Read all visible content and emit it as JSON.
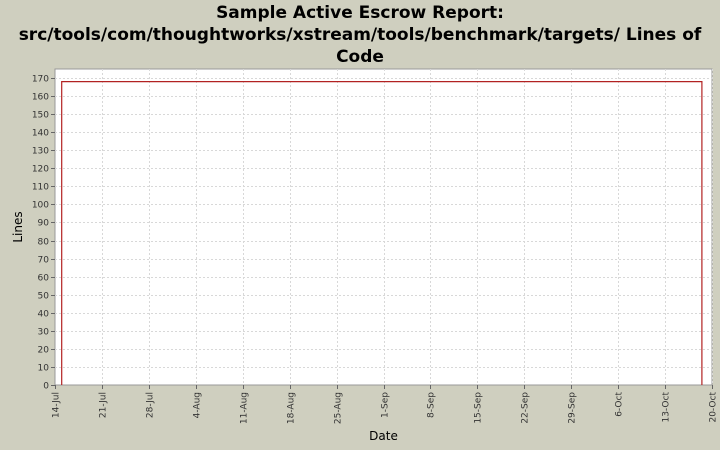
{
  "chart_data": {
    "type": "line",
    "title_lines": [
      "Sample Active Escrow Report:",
      "src/tools/com/thoughtworks/xstream/tools/benchmark/targets/ Lines of",
      "Code"
    ],
    "xlabel": "Date",
    "ylabel": "Lines",
    "x_tick_labels": [
      "14-Jul",
      "21-Jul",
      "28-Jul",
      "4-Aug",
      "11-Aug",
      "18-Aug",
      "25-Aug",
      "1-Sep",
      "8-Sep",
      "15-Sep",
      "22-Sep",
      "29-Sep",
      "6-Oct",
      "13-Oct",
      "20-Oct"
    ],
    "y_tick_labels": [
      "0",
      "10",
      "20",
      "30",
      "40",
      "50",
      "60",
      "70",
      "80",
      "90",
      "100",
      "110",
      "120",
      "130",
      "140",
      "150",
      "160",
      "170"
    ],
    "ylim": [
      0,
      175
    ],
    "x_range_days": [
      0,
      98
    ],
    "grid": true,
    "series": [
      {
        "color": "#b22222",
        "points": [
          {
            "day": 1,
            "value": 0
          },
          {
            "day": 1,
            "value": 168
          },
          {
            "day": 96.5,
            "value": 168
          },
          {
            "day": 96.5,
            "value": 0
          }
        ]
      }
    ],
    "colors": {
      "background": "#cfcfbf",
      "plot_background": "#ffffff",
      "grid": "#d8d8d8",
      "series": "#b22222"
    }
  }
}
